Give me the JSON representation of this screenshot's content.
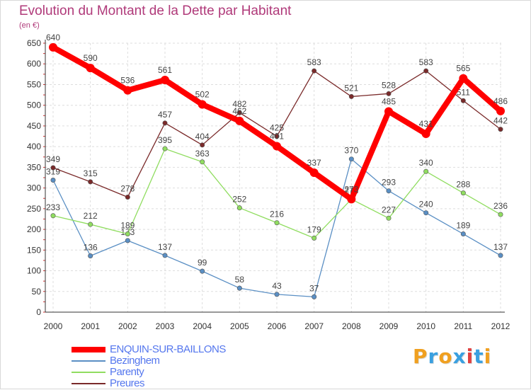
{
  "title": "Evolution du Montant de la Dette par Habitant",
  "unit": "(en €)",
  "brand": {
    "letters": [
      "P",
      "r",
      "o",
      "x",
      "i",
      "t",
      "i"
    ],
    "colors": [
      "#f0a020",
      "#3aa0e0",
      "#f0a020",
      "#3aa0e0",
      "#e04040",
      "#3aa0e0",
      "#f0a020"
    ]
  },
  "chart_data": {
    "type": "line",
    "title": "Evolution du Montant de la Dette par Habitant",
    "ylabel": "(en €)",
    "x": [
      "2000",
      "2001",
      "2002",
      "2003",
      "2004",
      "2005",
      "2006",
      "2007",
      "2008",
      "2009",
      "2010",
      "2011",
      "2012"
    ],
    "ylim": [
      0,
      650
    ],
    "yticks": [
      0,
      50,
      100,
      150,
      200,
      250,
      300,
      350,
      400,
      450,
      500,
      550,
      600,
      650
    ],
    "grid": true,
    "legend": "bottom-left",
    "series": [
      {
        "name": "ENQUIN-SUR-BAILLONS",
        "color": "#ff0000",
        "values": [
          640,
          590,
          536,
          561,
          502,
          462,
          401,
          337,
          273,
          485,
          431,
          565,
          486
        ]
      },
      {
        "name": "Bezinghem",
        "color": "#5a8fc4",
        "values": [
          319,
          136,
          173,
          137,
          99,
          58,
          43,
          37,
          370,
          293,
          240,
          189,
          137
        ]
      },
      {
        "name": "Parenty",
        "color": "#90dd60",
        "values": [
          233,
          212,
          189,
          395,
          363,
          252,
          216,
          179,
          273,
          227,
          340,
          288,
          236
        ]
      },
      {
        "name": "Preures",
        "color": "#7a2a2a",
        "values": [
          349,
          315,
          278,
          457,
          404,
          482,
          425,
          583,
          521,
          528,
          583,
          511,
          442
        ]
      }
    ]
  }
}
